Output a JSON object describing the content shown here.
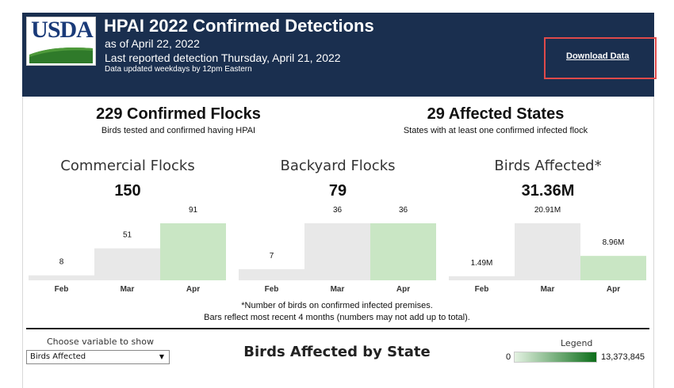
{
  "header": {
    "logo_text": "USDA",
    "title": "HPAI 2022 Confirmed Detections",
    "as_of": "as of April 22, 2022",
    "last_detection": "Last reported detection Thursday, April 21, 2022",
    "update_note": "Data updated weekdays by 12pm Eastern",
    "download_label": "Download Data",
    "bg_color": "#1a2f4f"
  },
  "summary": {
    "flocks_headline": "229 Confirmed Flocks",
    "flocks_sub": "Birds tested and confirmed having HPAI",
    "states_headline": "29 Affected States",
    "states_sub": "States with at least one confirmed infected flock"
  },
  "chart_data": [
    {
      "type": "bar",
      "title": "Commercial Flocks",
      "total": "150",
      "categories": [
        "Feb",
        "Mar",
        "Apr"
      ],
      "values": [
        8,
        51,
        91
      ],
      "labels": [
        "8",
        "51",
        "91"
      ],
      "highlight_index": 2
    },
    {
      "type": "bar",
      "title": "Backyard Flocks",
      "total": "79",
      "categories": [
        "Feb",
        "Mar",
        "Apr"
      ],
      "values": [
        7,
        36,
        36
      ],
      "labels": [
        "7",
        "36",
        "36"
      ],
      "highlight_index": 2
    },
    {
      "type": "bar",
      "title": "Birds Affected*",
      "total": "31.36M",
      "categories": [
        "Feb",
        "Mar",
        "Apr"
      ],
      "values": [
        1.49,
        20.91,
        8.96
      ],
      "labels": [
        "1.49M",
        "20.91M",
        "8.96M"
      ],
      "highlight_index": 2
    }
  ],
  "colors": {
    "bar_gray": "#e8e8e8",
    "bar_green": "#c9e6c4"
  },
  "notes": {
    "line1": "*Number of birds on confirmed infected premises.",
    "line2": "Bars reflect most recent 4 months (numbers may not add up to total)."
  },
  "map": {
    "choose_label": "Choose variable to show",
    "selected": "Birds Affected",
    "title": "Birds Affected by State",
    "legend_title": "Legend",
    "legend_min": "0",
    "legend_max": "13,373,845"
  }
}
